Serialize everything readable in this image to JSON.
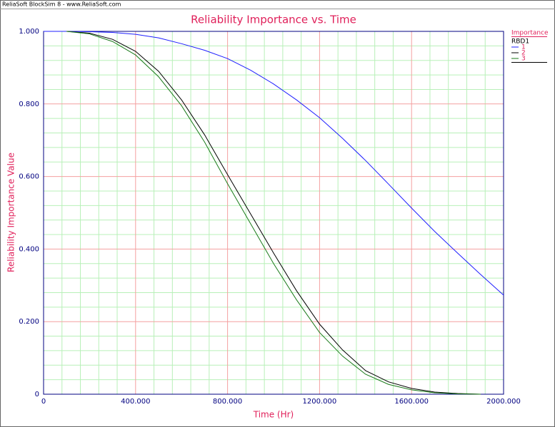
{
  "window_title": "ReliaSoft BlockSim 8 - www.ReliaSoft.com",
  "chart_data": {
    "type": "line",
    "title": "Reliability Importance vs. Time",
    "x_label": "Time (Hr)",
    "y_label": "Reliability Importance Value",
    "legend_title": "Importance",
    "legend_group": "RBD1",
    "legend_position": "top-right",
    "grid": true,
    "x": [
      0,
      100,
      200,
      300,
      400,
      500,
      600,
      700,
      800,
      900,
      1000,
      1100,
      1200,
      1300,
      1400,
      1500,
      1600,
      1700,
      1800,
      1900,
      2000
    ],
    "series": [
      {
        "name": "1",
        "color": "#1f1fff",
        "values": [
          1.0,
          1.0,
          0.999,
          0.997,
          0.992,
          0.982,
          0.966,
          0.948,
          0.925,
          0.893,
          0.855,
          0.811,
          0.762,
          0.705,
          0.644,
          0.579,
          0.513,
          0.449,
          0.389,
          0.33,
          0.273
        ]
      },
      {
        "name": "2",
        "color": "#000000",
        "values": [
          null,
          1.0,
          0.995,
          0.978,
          0.945,
          0.89,
          0.811,
          0.715,
          0.605,
          0.497,
          0.389,
          0.285,
          0.193,
          0.122,
          0.065,
          0.034,
          0.016,
          0.006,
          0.002,
          0.0,
          null
        ]
      },
      {
        "name": "3",
        "color": "#1a7a1a",
        "values": [
          null,
          1.0,
          0.993,
          0.972,
          0.935,
          0.875,
          0.795,
          0.695,
          0.58,
          0.47,
          0.36,
          0.26,
          0.17,
          0.105,
          0.055,
          0.027,
          0.012,
          0.004,
          0.001,
          0.0,
          null
        ]
      }
    ],
    "xlim": [
      0,
      2000
    ],
    "xticks": [
      0,
      {
        "value": 400,
        "label": "400.000"
      },
      {
        "value": 800,
        "label": "800.000"
      },
      {
        "value": 1200,
        "label": "1200.000"
      },
      {
        "value": 1600,
        "label": "1600.000"
      },
      {
        "value": 2000,
        "label": "2000.000"
      }
    ],
    "ylim": [
      0,
      1
    ],
    "yticks": [
      0,
      {
        "value": 0.2,
        "label": "0.200"
      },
      {
        "value": 0.4,
        "label": "0.400"
      },
      {
        "value": 0.6,
        "label": "0.600"
      },
      {
        "value": 0.8,
        "label": "0.800"
      },
      {
        "value": 1,
        "label": "1.000"
      }
    ]
  }
}
